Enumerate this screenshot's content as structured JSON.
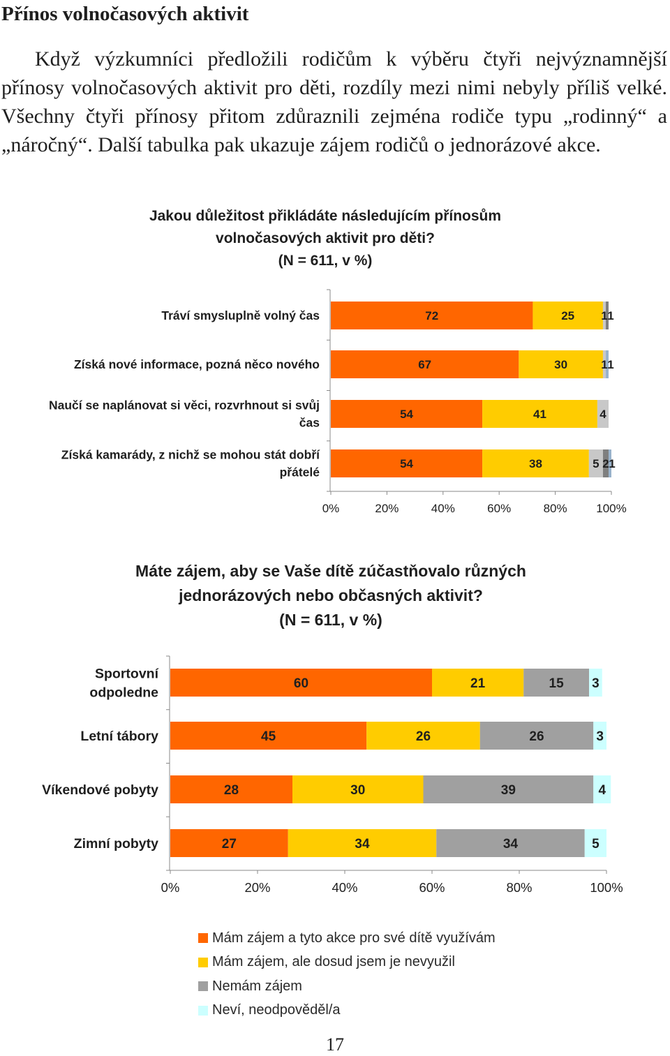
{
  "page": {
    "title": "Přínos volnočasových aktivit",
    "paragraph": "Když výzkumníci předložili rodičům k výběru čtyři nejvýznam­nější přínosy volnočasových aktivit pro děti, rozdíly mezi nimi nebyly příliš velké. Všechny čtyři přínosy přitom zdůraznili zejména rodiče typu „rodinný“ a „náročný“. Další tabulka pak ukazuje zájem rodičů o jednorázové akce.",
    "page_number": "17"
  },
  "colors": {
    "orange": "#FF6600",
    "yellow": "#FFCC00",
    "gray": "#A0A0A0",
    "darkgray": "#7F7F7F",
    "lightblue": "#CCFFFF",
    "steelblue": "#99B3CC"
  },
  "legend": [
    {
      "label": "Mám zájem a tyto akce pro své dítě využívám",
      "color": "#FF6600"
    },
    {
      "label": "Mám zájem, ale dosud jsem je nevyužil",
      "color": "#FFCC00"
    },
    {
      "label": "Nemám zájem",
      "color": "#A0A0A0"
    },
    {
      "label": "Neví, neodpověděl/a",
      "color": "#CCFFFF"
    }
  ],
  "chart_data": [
    {
      "type": "bar",
      "orientation": "horizontal",
      "stacked": true,
      "title": [
        "Jakou důležitost přikládáte následujícím přínosům",
        "volnočasových aktivit pro děti?",
        "(N = 611, v %)"
      ],
      "categories": [
        [
          "Tráví smysluplně volný čas"
        ],
        [
          "Získá nové informace, pozná něco nového"
        ],
        [
          "Naučí se naplánovat si věci, rozvrhnout si svůj",
          "čas"
        ],
        [
          "Získá kamarády, z nichž se mohou stát dobří",
          "přátelé"
        ]
      ],
      "series": [
        {
          "name": "s1",
          "color": "#FF6600",
          "values": [
            72,
            67,
            54,
            54
          ]
        },
        {
          "name": "s2",
          "color": "#FFCC00",
          "values": [
            25,
            30,
            41,
            38
          ]
        },
        {
          "name": "s3",
          "color": "#C8C8C8",
          "values": [
            1,
            1,
            4,
            5
          ]
        },
        {
          "name": "s4",
          "color": "#7F7F7F",
          "values": [
            1,
            0,
            0,
            2
          ]
        },
        {
          "name": "s5",
          "color": "#99B3CC",
          "values": [
            0,
            1,
            0,
            1
          ]
        }
      ],
      "data_labels": [
        [
          "72",
          "25",
          "1",
          "1",
          ""
        ],
        [
          "67",
          "30",
          "1",
          "",
          "1"
        ],
        [
          "54",
          "41",
          "4",
          "",
          ""
        ],
        [
          "54",
          "38",
          "5",
          "2",
          "1"
        ]
      ],
      "x_ticks": [
        "0%",
        "20%",
        "40%",
        "60%",
        "80%",
        "100%"
      ],
      "xlim": [
        0,
        100
      ],
      "grid": false
    },
    {
      "type": "bar",
      "orientation": "horizontal",
      "stacked": true,
      "title": [
        "Máte zájem, aby se Vaše dítě zúčastňovalo různých",
        "jednorázových nebo občasných aktivit?",
        "(N = 611, v %)"
      ],
      "categories": [
        [
          "Sportovní",
          "odpoledne"
        ],
        [
          "Letní tábory"
        ],
        [
          "Víkendové pobyty"
        ],
        [
          "Zimní pobyty"
        ]
      ],
      "series": [
        {
          "name": "Mám zájem a tyto akce pro své dítě využívám",
          "color": "#FF6600",
          "values": [
            60,
            45,
            28,
            27
          ]
        },
        {
          "name": "Mám zájem, ale dosud jsem je nevyužil",
          "color": "#FFCC00",
          "values": [
            21,
            26,
            30,
            34
          ]
        },
        {
          "name": "Nemám zájem",
          "color": "#A0A0A0",
          "values": [
            15,
            26,
            39,
            34
          ]
        },
        {
          "name": "Neví, neodpověděl/a",
          "color": "#CCFFFF",
          "values": [
            3,
            3,
            4,
            5
          ]
        }
      ],
      "data_labels": [
        [
          "60",
          "21",
          "15",
          "3"
        ],
        [
          "45",
          "26",
          "26",
          "3"
        ],
        [
          "28",
          "30",
          "39",
          "4"
        ],
        [
          "27",
          "34",
          "34",
          "5"
        ]
      ],
      "x_ticks": [
        "0%",
        "20%",
        "40%",
        "60%",
        "80%",
        "100%"
      ],
      "xlim": [
        0,
        100
      ],
      "legend_position": "bottom",
      "grid": false
    }
  ]
}
